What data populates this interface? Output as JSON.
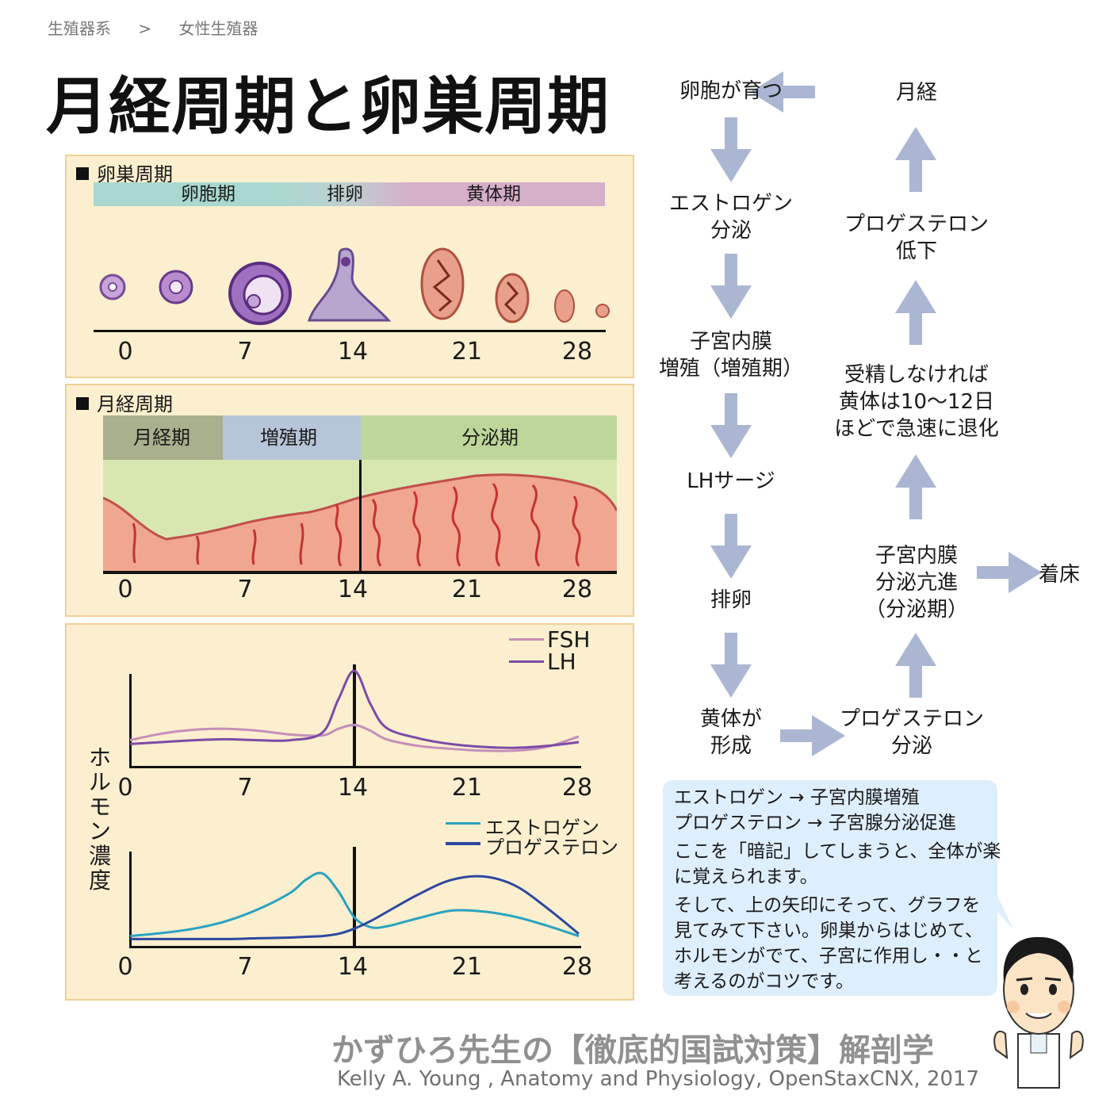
{
  "breadcrumb": [
    "生殖器系",
    ">",
    "女性生殖器"
  ],
  "title": "月経周期と卵巣周期",
  "ovarian": {
    "label": "卵巣周期",
    "phases": [
      "卵胞期",
      "排卵",
      "黄体期"
    ],
    "ticks": [
      "0",
      "7",
      "14",
      "21",
      "28"
    ]
  },
  "menstrual": {
    "label": "月経周期",
    "phases": [
      "月経期",
      "増殖期",
      "分泌期"
    ],
    "ticks": [
      "0",
      "7",
      "14",
      "21",
      "28"
    ]
  },
  "hormone": {
    "ylabel": "ホルモン濃度",
    "ticks": [
      "0",
      "7",
      "14",
      "21",
      "28"
    ],
    "legend_top": [
      "FSH",
      "LH"
    ],
    "legend_bottom": [
      "エストロゲン",
      "プロゲステロン"
    ]
  },
  "colors": {
    "fsh": "#c48fb8",
    "lh": "#7d4aa6",
    "estrogen": "#2aa2c0",
    "progesterone": "#2c48a0",
    "arrow": "#aab6d2",
    "panel_bg": "#fbefcf"
  },
  "chart_data": [
    {
      "type": "line",
      "x": [
        0,
        2,
        4,
        6,
        8,
        10,
        12,
        13,
        14,
        15,
        16,
        18,
        20,
        22,
        24,
        26,
        28
      ],
      "xlim": [
        0,
        28
      ],
      "series": [
        {
          "name": "FSH",
          "values": [
            2.2,
            2.9,
            3.3,
            3.4,
            3.2,
            2.8,
            2.7,
            3.4,
            3.8,
            3.2,
            2.3,
            1.6,
            1.3,
            1.1,
            1.1,
            1.5,
            2.6
          ]
        },
        {
          "name": "LH",
          "values": [
            1.8,
            2.0,
            2.2,
            2.3,
            2.2,
            2.2,
            3.0,
            6.5,
            9.5,
            6.0,
            3.5,
            2.4,
            1.8,
            1.5,
            1.4,
            1.6,
            2.0
          ]
        }
      ]
    },
    {
      "type": "line",
      "x": [
        0,
        2,
        4,
        6,
        8,
        10,
        11,
        12,
        13,
        14,
        15,
        16,
        18,
        20,
        22,
        24,
        26,
        28
      ],
      "xlim": [
        0,
        28
      ],
      "series": [
        {
          "name": "エストロゲン",
          "values": [
            1.0,
            1.4,
            2.0,
            3.0,
            4.6,
            6.8,
            8.6,
            9.4,
            7.0,
            3.5,
            2.2,
            2.3,
            3.4,
            4.4,
            4.3,
            3.6,
            2.4,
            1.0
          ]
        },
        {
          "name": "プロゲステロン",
          "values": [
            0.6,
            0.6,
            0.6,
            0.6,
            0.7,
            0.8,
            0.9,
            1.0,
            1.3,
            2.0,
            3.0,
            4.2,
            6.6,
            8.5,
            9.0,
            7.8,
            4.8,
            1.3
          ]
        }
      ]
    }
  ],
  "flow": {
    "left": [
      "卵胞が育つ",
      "エストロゲン\n分泌",
      "子宮内膜\n増殖（増殖期）",
      "LHサージ",
      "排卵",
      "黄体が\n形成"
    ],
    "right": [
      "月経",
      "プロゲステロン\n低下",
      "受精しなければ\n黄体は10〜12日\nほどで急速に退化",
      "子宮内膜\n分泌亢進\n（分泌期）",
      "プロゲステロン\n分泌"
    ],
    "side": "着床"
  },
  "note": [
    "エストロゲン → 子宮内膜増殖",
    "プロゲステロン → 子宮腺分泌促進",
    "ここを「暗記」してしまうと、全体が楽",
    "に覚えられます。",
    "そして、上の矢印にそって、グラフを",
    "見てみて下さい。卵巣からはじめて、",
    "ホルモンがでて、子宮に作用し・・と",
    "考えるのがコツです。"
  ],
  "footer": {
    "line1": "かずひろ先生の【徹底的国試対策】解剖学",
    "line2": "Kelly A. Young , Anatomy and Physiology, OpenStaxCNX, 2017"
  }
}
